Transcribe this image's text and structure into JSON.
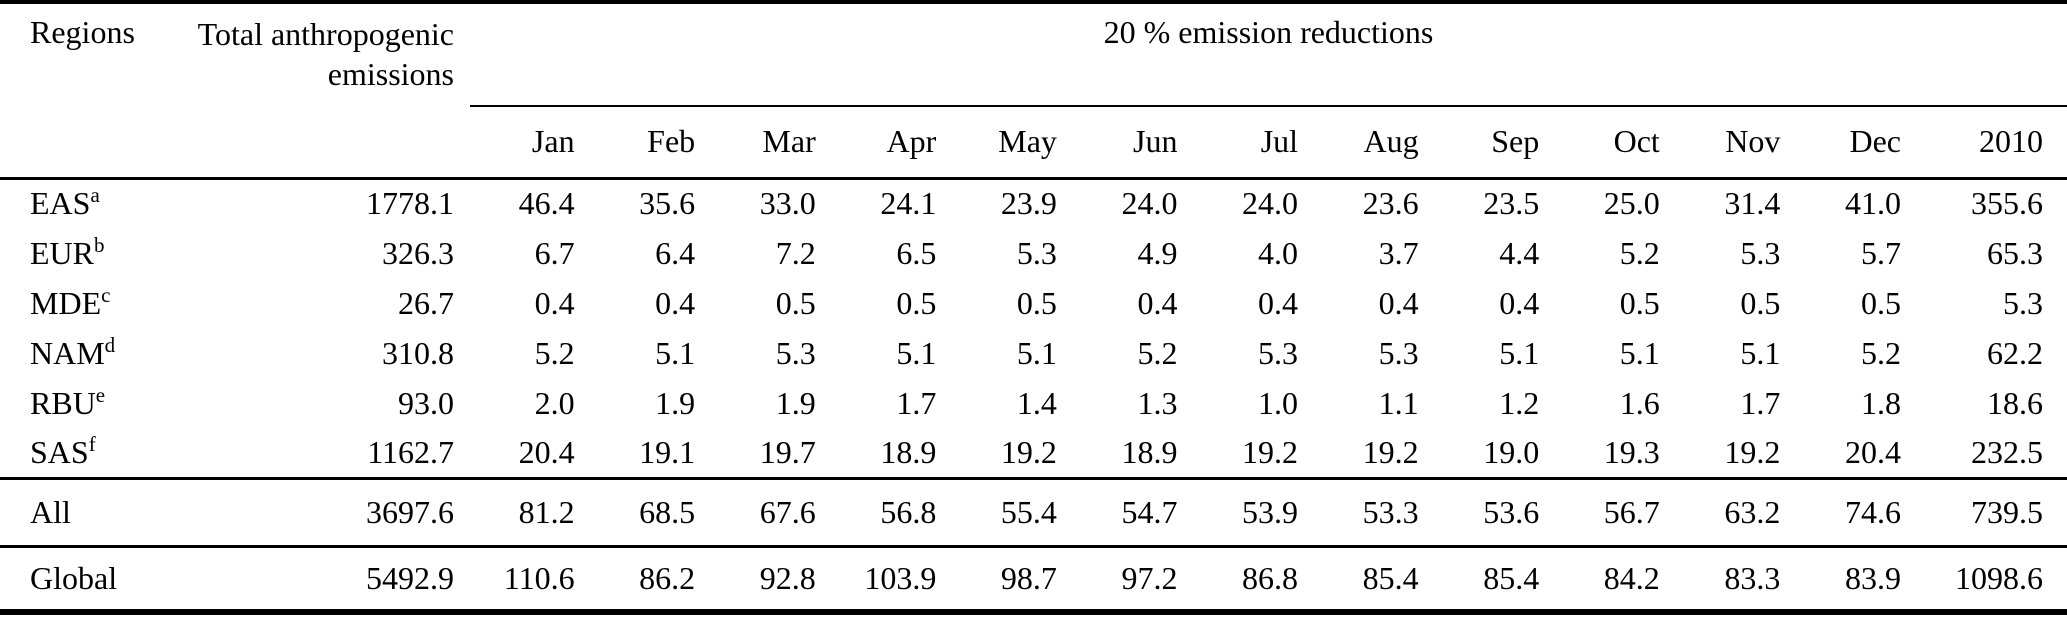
{
  "table": {
    "header": {
      "regions": "Regions",
      "total": "Total anthropogenic emissions",
      "group": "20 % emission reductions",
      "months": [
        "Jan",
        "Feb",
        "Mar",
        "Apr",
        "May",
        "Jun",
        "Jul",
        "Aug",
        "Sep",
        "Oct",
        "Nov",
        "Dec",
        "2010"
      ]
    },
    "rows": [
      {
        "region": "EAS",
        "sup": "a",
        "total": "1778.1",
        "values": [
          "46.4",
          "35.6",
          "33.0",
          "24.1",
          "23.9",
          "24.0",
          "24.0",
          "23.6",
          "23.5",
          "25.0",
          "31.4",
          "41.0",
          "355.6"
        ]
      },
      {
        "region": "EUR",
        "sup": "b",
        "total": "326.3",
        "values": [
          "6.7",
          "6.4",
          "7.2",
          "6.5",
          "5.3",
          "4.9",
          "4.0",
          "3.7",
          "4.4",
          "5.2",
          "5.3",
          "5.7",
          "65.3"
        ]
      },
      {
        "region": "MDE",
        "sup": "c",
        "total": "26.7",
        "values": [
          "0.4",
          "0.4",
          "0.5",
          "0.5",
          "0.5",
          "0.4",
          "0.4",
          "0.4",
          "0.4",
          "0.5",
          "0.5",
          "0.5",
          "5.3"
        ]
      },
      {
        "region": "NAM",
        "sup": "d",
        "total": "310.8",
        "values": [
          "5.2",
          "5.1",
          "5.3",
          "5.1",
          "5.1",
          "5.2",
          "5.3",
          "5.3",
          "5.1",
          "5.1",
          "5.1",
          "5.2",
          "62.2"
        ]
      },
      {
        "region": "RBU",
        "sup": "e",
        "total": "93.0",
        "values": [
          "2.0",
          "1.9",
          "1.9",
          "1.7",
          "1.4",
          "1.3",
          "1.0",
          "1.1",
          "1.2",
          "1.6",
          "1.7",
          "1.8",
          "18.6"
        ]
      },
      {
        "region": "SAS",
        "sup": "f",
        "total": "1162.7",
        "values": [
          "20.4",
          "19.1",
          "19.7",
          "18.9",
          "19.2",
          "18.9",
          "19.2",
          "19.2",
          "19.0",
          "19.3",
          "19.2",
          "20.4",
          "232.5"
        ]
      }
    ],
    "summary_rows": [
      {
        "region": "All",
        "sup": "",
        "total": "3697.6",
        "values": [
          "81.2",
          "68.5",
          "67.6",
          "56.8",
          "55.4",
          "54.7",
          "53.9",
          "53.3",
          "53.6",
          "56.7",
          "63.2",
          "74.6",
          "739.5"
        ]
      },
      {
        "region": "Global",
        "sup": "",
        "total": "5492.9",
        "values": [
          "110.6",
          "86.2",
          "92.8",
          "103.9",
          "98.7",
          "97.2",
          "86.8",
          "85.4",
          "85.4",
          "84.2",
          "83.3",
          "83.9",
          "1098.6"
        ]
      }
    ]
  }
}
